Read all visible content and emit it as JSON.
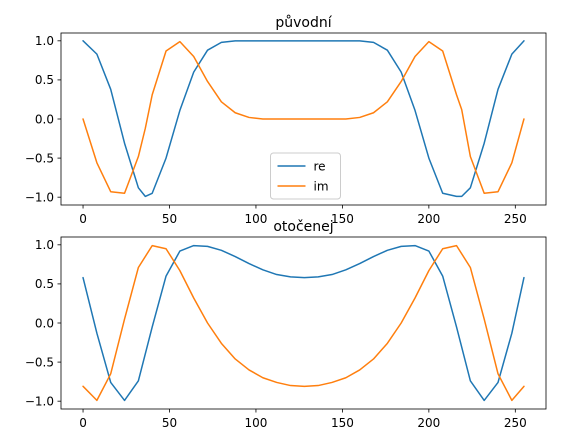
{
  "chart_data": [
    {
      "type": "line",
      "title": "původní",
      "xlabel": "",
      "ylabel": "",
      "xlim": [
        -12.75,
        267.75
      ],
      "ylim": [
        -1.1,
        1.1
      ],
      "xticks": [
        0,
        50,
        100,
        150,
        200,
        250
      ],
      "yticks": [
        -1.0,
        -0.5,
        0.0,
        0.5,
        1.0
      ],
      "xtick_labels": [
        "0",
        "50",
        "100",
        "150",
        "200",
        "250"
      ],
      "ytick_labels": [
        "−1.0",
        "−0.5",
        "0.0",
        "0.5",
        "1.0"
      ],
      "legend": {
        "location": "lower center",
        "entries": [
          "re",
          "im"
        ]
      },
      "x": [
        0,
        8,
        16,
        24,
        32,
        36,
        40,
        48,
        56,
        64,
        72,
        80,
        88,
        96,
        104,
        112,
        120,
        128,
        136,
        144,
        152,
        160,
        168,
        176,
        184,
        192,
        200,
        208,
        216,
        219,
        224,
        232,
        240,
        248,
        255
      ],
      "series": [
        {
          "name": "re",
          "color": "#1f77b4",
          "values": [
            1.0,
            0.83,
            0.38,
            -0.31,
            -0.88,
            -0.99,
            -0.95,
            -0.5,
            0.11,
            0.6,
            0.88,
            0.98,
            1.0,
            1.0,
            1.0,
            1.0,
            1.0,
            1.0,
            1.0,
            1.0,
            1.0,
            1.0,
            0.98,
            0.88,
            0.6,
            0.11,
            -0.5,
            -0.95,
            -0.99,
            -0.99,
            -0.88,
            -0.31,
            0.38,
            0.83,
            1.0
          ]
        },
        {
          "name": "im",
          "color": "#ff7f0e",
          "values": [
            0.0,
            -0.56,
            -0.93,
            -0.95,
            -0.48,
            -0.12,
            0.31,
            0.87,
            0.99,
            0.8,
            0.48,
            0.22,
            0.08,
            0.02,
            0.0,
            0.0,
            0.0,
            0.0,
            0.0,
            0.0,
            0.0,
            0.02,
            0.08,
            0.22,
            0.48,
            0.8,
            0.99,
            0.87,
            0.31,
            0.12,
            -0.48,
            -0.95,
            -0.93,
            -0.56,
            0.0
          ]
        }
      ]
    },
    {
      "type": "line",
      "title": "otočenej",
      "xlabel": "",
      "ylabel": "",
      "xlim": [
        -12.75,
        267.75
      ],
      "ylim": [
        -1.1,
        1.1
      ],
      "xticks": [
        0,
        50,
        100,
        150,
        200,
        250
      ],
      "yticks": [
        -1.0,
        -0.5,
        0.0,
        0.5,
        1.0
      ],
      "xtick_labels": [
        "0",
        "50",
        "100",
        "150",
        "200",
        "250"
      ],
      "ytick_labels": [
        "−1.0",
        "−0.5",
        "0.0",
        "0.5",
        "1.0"
      ],
      "x": [
        0,
        8,
        16,
        24,
        32,
        40,
        48,
        56,
        64,
        72,
        80,
        88,
        96,
        104,
        112,
        120,
        128,
        136,
        144,
        152,
        160,
        168,
        176,
        184,
        192,
        200,
        208,
        216,
        224,
        232,
        240,
        248,
        255
      ],
      "series": [
        {
          "name": "re",
          "color": "#1f77b4",
          "values": [
            0.58,
            -0.13,
            -0.76,
            -0.99,
            -0.74,
            -0.05,
            0.6,
            0.92,
            0.99,
            0.98,
            0.93,
            0.85,
            0.76,
            0.68,
            0.62,
            0.59,
            0.58,
            0.59,
            0.62,
            0.68,
            0.76,
            0.85,
            0.93,
            0.98,
            0.99,
            0.92,
            0.6,
            -0.05,
            -0.74,
            -0.99,
            -0.76,
            -0.13,
            0.58
          ]
        },
        {
          "name": "im",
          "color": "#ff7f0e",
          "values": [
            -0.81,
            -0.99,
            -0.65,
            0.05,
            0.71,
            0.99,
            0.95,
            0.67,
            0.32,
            0.0,
            -0.26,
            -0.46,
            -0.6,
            -0.7,
            -0.76,
            -0.8,
            -0.81,
            -0.8,
            -0.76,
            -0.7,
            -0.6,
            -0.46,
            -0.26,
            0.0,
            0.32,
            0.67,
            0.95,
            0.99,
            0.71,
            0.05,
            -0.65,
            -0.99,
            -0.81
          ]
        }
      ]
    }
  ]
}
